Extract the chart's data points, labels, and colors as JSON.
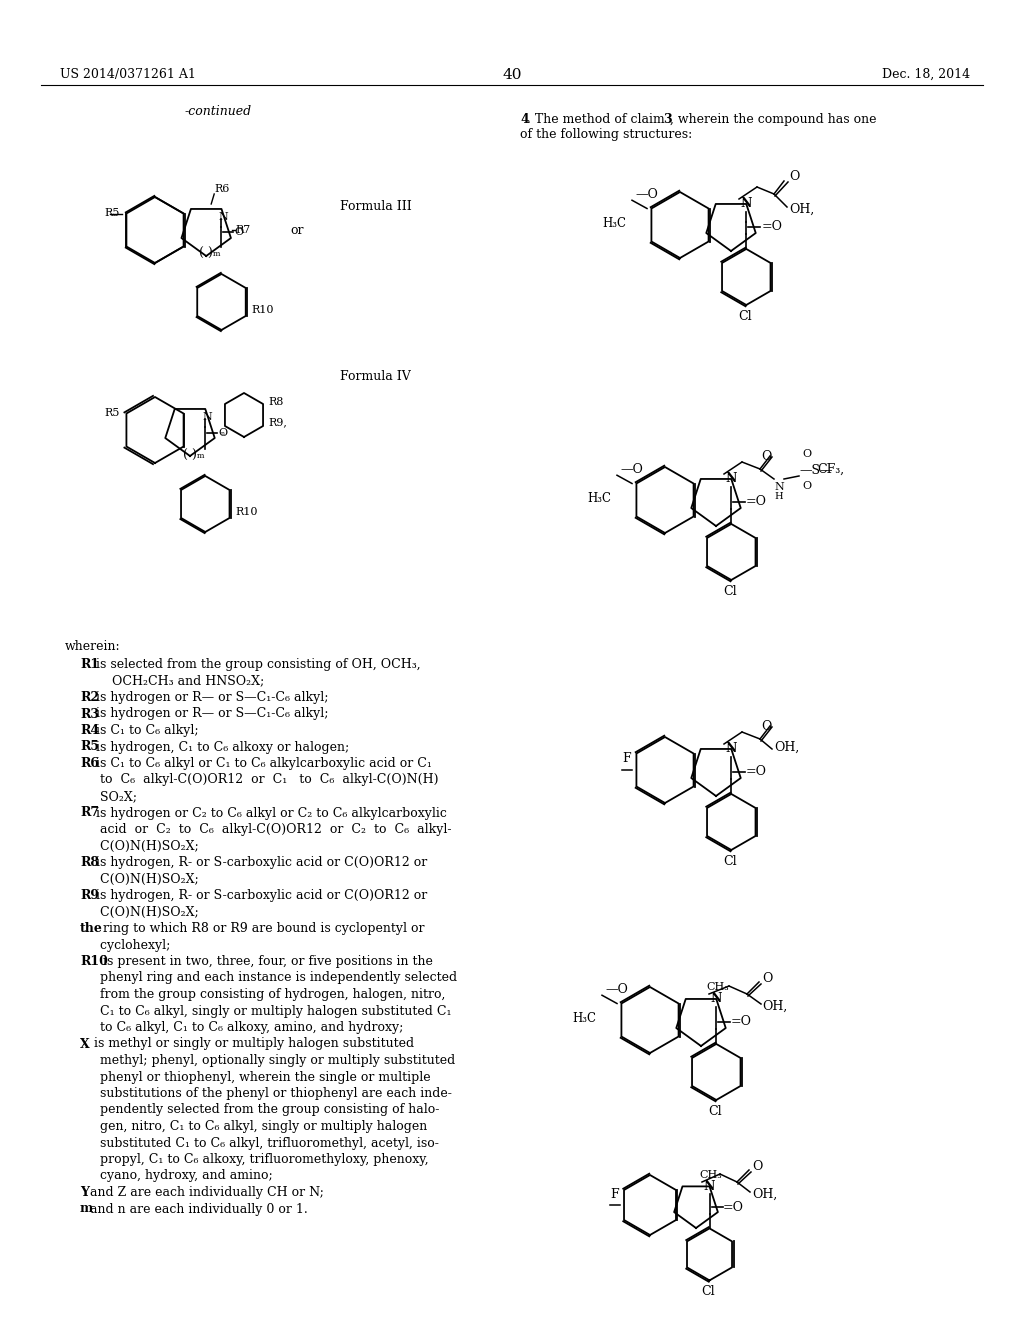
{
  "page_number": "40",
  "patent_number": "US 2014/0371261 A1",
  "patent_date": "Dec. 18, 2014",
  "background_color": "#ffffff",
  "text_color": "#000000",
  "left_column": {
    "continued_label": "-continued",
    "formula_III_label": "Formula III",
    "formula_IV_label": "Formula IV",
    "wherein_text": [
      "wherein:",
      "    R1  is selected from the group consisting of OH, OCH₃,",
      "        OCH₂CH₃ and HNSO₂X;",
      "    R2 is hydrogen or R— or S—C₁-C₆ alkyl;",
      "    R3 is hydrogen or R— or S—C₁-C₆ alkyl;",
      "    R4 is C₁ to C₆ alkyl;",
      "    R5 is hydrogen, C₁ to C₆ alkoxy or halogen;",
      "    R6 is C₁ to C₆ alkyl or C₁ to C₆ alkylcarboxylic acid or C₁",
      "        to  C₆  alkyl-C(O)OR12  or  C₁   to  C₆  alkyl-C(O)N(H)",
      "        SO₂X;",
      "    R7 is hydrogen or C₂ to C₆ alkyl or C₂ to C₆ alkylcarboxylic",
      "        acid  or  C₂  to  C₆  alkyl-C(O)OR12  or  C₂  to  C₆  alkyl-",
      "        C(O)N(H)SO₂X;",
      "    R8 is hydrogen, R- or S-carboxylic acid or C(O)OR12 or",
      "        C(O)N(H)SO₂X;",
      "    R9 is hydrogen, R- or S-carboxylic acid or C(O)OR12 or",
      "        C(O)N(H)SO₂X;",
      "    the ring to which R8 or R9 are bound is cyclopentyl or",
      "        cyclohexyl;",
      "    R10 is present in two, three, four, or five positions in the",
      "        phenyl ring and each instance is independently selected",
      "        from the group consisting of hydrogen, halogen, nitro,",
      "        C₁ to C₆ alkyl, singly or multiply halogen substituted C₁",
      "        to C₆ alkyl, C₁ to C₆ alkoxy, amino, and hydroxy;",
      "    X  is methyl or singly or multiply halogen substituted",
      "        methyl; phenyl, optionally singly or multiply substituted",
      "        phenyl or thiophenyl, wherein the single or multiple",
      "        substitutions of the phenyl or thiophenyl are each inde-",
      "        pendently selected from the group consisting of halo-",
      "        gen, nitro, C₁ to C₆ alkyl, singly or multiply halogen",
      "        substituted C₁ to C₆ alkyl, trifluoromethyl, acetyl, iso-",
      "        propyl, C₁ to C₆ alkoxy, trifluoromethyloxy, phenoxy,",
      "        cyano, hydroxy, and amino;",
      "    Y and Z are each individually CH or N;",
      "    m and n are each individually 0 or 1."
    ]
  },
  "right_column": {
    "claim_text": "4. The method of claim 3, wherein the compound has one\nof the following structures:"
  }
}
